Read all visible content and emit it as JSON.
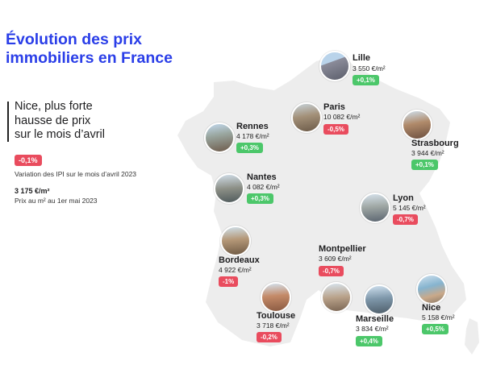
{
  "title": {
    "line1": "Évolution des prix",
    "line2": "immobiliers en France",
    "color": "#2a3ee8"
  },
  "headline": {
    "line1": "Nice, plus forte",
    "line2": "hausse de prix",
    "line3": "sur le mois d’avril"
  },
  "legend": {
    "variation_badge": "-0,1%",
    "variation_label": "Variation des IPI sur le mois d’avril 2023",
    "price_value": "3 175 €/m²",
    "price_label": "Prix au m² au 1er mai 2023"
  },
  "colors": {
    "positive": "#4cc76a",
    "negative": "#e94c5e",
    "map": "#ededed"
  },
  "cities": {
    "lille": {
      "name": "Lille",
      "price": "3 550 €/m²",
      "change": "+0,1%"
    },
    "paris": {
      "name": "Paris",
      "price": "10 082 €/m²",
      "change": "-0,5%"
    },
    "rennes": {
      "name": "Rennes",
      "price": "4 178 €/m²",
      "change": "+0,3%"
    },
    "strasbourg": {
      "name": "Strasbourg",
      "price": "3 944 €/m²",
      "change": "+0,1%"
    },
    "nantes": {
      "name": "Nantes",
      "price": "4 082 €/m²",
      "change": "+0,3%"
    },
    "lyon": {
      "name": "Lyon",
      "price": "5 145 €/m²",
      "change": "-0,7%"
    },
    "bordeaux": {
      "name": "Bordeaux",
      "price": "4 922 €/m²",
      "change": "-1%"
    },
    "montpellier": {
      "name": "Montpellier",
      "price": "3 609 €/m²",
      "change": "-0,7%"
    },
    "toulouse": {
      "name": "Toulouse",
      "price": "3 718 €/m²",
      "change": "-0,2%"
    },
    "marseille": {
      "name": "Marseille",
      "price": "3 834 €/m²",
      "change": "+0,4%"
    },
    "nice": {
      "name": "Nice",
      "price": "5 158 €/m²",
      "change": "+0,5%"
    }
  }
}
